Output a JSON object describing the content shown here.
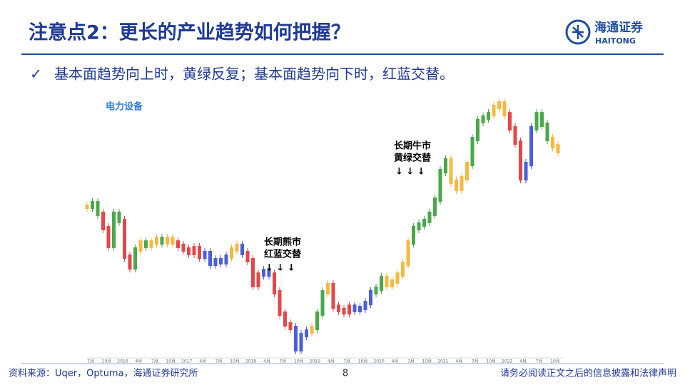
{
  "header": {
    "title": "注意点2：更长的产业趋势如何把握？",
    "logo_cn": "海通证券",
    "logo_en": "HAITONG"
  },
  "bullet": "基本面趋势向上时，黄绿反复；基本面趋势向下时，红蓝交替。",
  "chart_data": {
    "type": "candle-trend",
    "title": "电力设备",
    "ylim": [
      0,
      100
    ],
    "xtick_labels": [
      "7月",
      "10月",
      "2016",
      "4月",
      "7月",
      "10月",
      "2017",
      "4月",
      "7月",
      "10月",
      "2018",
      "4月",
      "7月",
      "10月",
      "2019",
      "4月",
      "7月",
      "10月",
      "2020",
      "4月",
      "7月",
      "10月",
      "2021",
      "4月",
      "7月",
      "10月",
      "2022",
      "4月",
      "7月",
      "10月"
    ],
    "values": [
      58.3,
      59.7,
      55.6,
      50,
      43.1,
      55.6,
      52.8,
      38.9,
      34.7,
      41.7,
      44.4,
      43.1,
      44.4,
      45.8,
      44.4,
      45.8,
      44.4,
      43.1,
      41.7,
      40.3,
      42.2,
      38.9,
      40.3,
      36.1,
      37.5,
      36.7,
      38.9,
      41.7,
      43.1,
      40.3,
      37.5,
      27.8,
      31.9,
      33.3,
      31.9,
      25,
      16.7,
      12.5,
      11.1,
      2.8,
      8.3,
      9.7,
      11.1,
      16.7,
      25,
      27.8,
      19.4,
      18.1,
      17.2,
      19.4,
      18.1,
      18.9,
      20.8,
      25,
      26.4,
      30.6,
      27.8,
      29.2,
      31.9,
      36.1,
      44.4,
      50,
      51.4,
      52.8,
      55.6,
      61.1,
      72.2,
      76.4,
      68.1,
      65.3,
      69.4,
      75,
      84.7,
      91.7,
      93.1,
      94.4,
      97.2,
      98.6,
      94.4,
      88.9,
      83.3,
      69.4,
      75,
      88.9,
      94.4,
      90.3,
      84.7,
      81.9,
      80
    ],
    "colors": [
      "#f5b942",
      "#4aa84a",
      "#4aa84a",
      "#e4474a",
      "#e4474a",
      "#4aa84a",
      "#4aa84a",
      "#e4474a",
      "#e4474a",
      "#4aa84a",
      "#f5b942",
      "#4aa84a",
      "#f5b942",
      "#f5b942",
      "#4aa84a",
      "#f5b942",
      "#f5b942",
      "#e4474a",
      "#e4474a",
      "#e4474a",
      "#e4474a",
      "#e4474a",
      "#4a5fd8",
      "#4a5fd8",
      "#4a5fd8",
      "#4a5fd8",
      "#4a5fd8",
      "#f5b942",
      "#f5b942",
      "#4a5fd8",
      "#e4474a",
      "#e4474a",
      "#e4474a",
      "#4a5fd8",
      "#4a5fd8",
      "#e4474a",
      "#e4474a",
      "#e4474a",
      "#e4474a",
      "#4a5fd8",
      "#4a5fd8",
      "#4a5fd8",
      "#f5b942",
      "#4aa84a",
      "#4aa84a",
      "#f5b942",
      "#e4474a",
      "#e4474a",
      "#e4474a",
      "#e4474a",
      "#4a5fd8",
      "#4a5fd8",
      "#4a5fd8",
      "#4a5fd8",
      "#4aa84a",
      "#4aa84a",
      "#f5b942",
      "#f5b942",
      "#f5b942",
      "#f5b942",
      "#f5b942",
      "#4aa84a",
      "#4aa84a",
      "#4aa84a",
      "#4aa84a",
      "#4aa84a",
      "#4aa84a",
      "#4aa84a",
      "#f5b942",
      "#f5b942",
      "#f5b942",
      "#f5b942",
      "#4aa84a",
      "#4aa84a",
      "#4aa84a",
      "#4aa84a",
      "#f5b942",
      "#f5b942",
      "#f5b942",
      "#e4474a",
      "#e4474a",
      "#e4474a",
      "#4a5fd8",
      "#4a5fd8",
      "#4aa84a",
      "#4aa84a",
      "#4aa84a",
      "#f5b942",
      "#f5b942"
    ],
    "annotations": [
      {
        "lines": [
          "长期熊市",
          "红蓝交替"
        ],
        "arrows": "↓ ↓ ↓"
      },
      {
        "lines": [
          "长期牛市",
          "黄绿交替"
        ],
        "arrows": "↓ ↓ ↓"
      }
    ]
  },
  "footer": {
    "source": "资料来源：Uqer，Optuma，海通证券研究所",
    "page": "8",
    "disclaimer": "请务必阅读正文之后的信息披露和法律声明"
  }
}
